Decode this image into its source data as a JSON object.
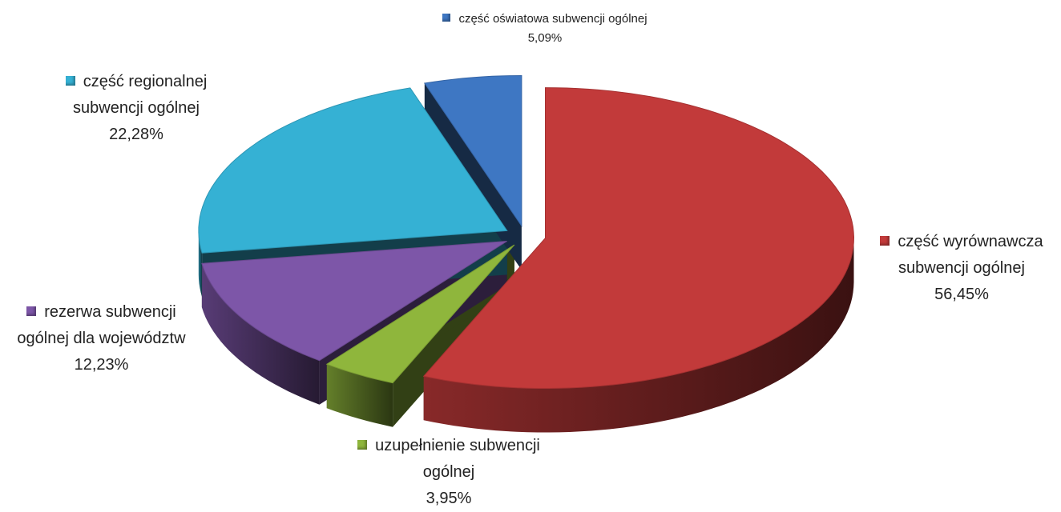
{
  "chart_data": {
    "type": "pie3d",
    "categories": [
      "część wyrównawcza subwencji ogólnej",
      "uzupełnienie subwencji ogólnej",
      "rezerwa subwencji ogólnej dla województw",
      "część regionalnej subwencji ogólnej",
      "część oświatowa subwencji ogólnej"
    ],
    "values": [
      56.45,
      3.95,
      12.23,
      22.28,
      5.09
    ],
    "value_labels": [
      "56,45%",
      "3,95%",
      "12,23%",
      "22,28%",
      "5,09%"
    ],
    "colors": [
      "#c23a3a",
      "#8fb63c",
      "#7d56a8",
      "#35b1d4",
      "#3e77c3"
    ]
  }
}
